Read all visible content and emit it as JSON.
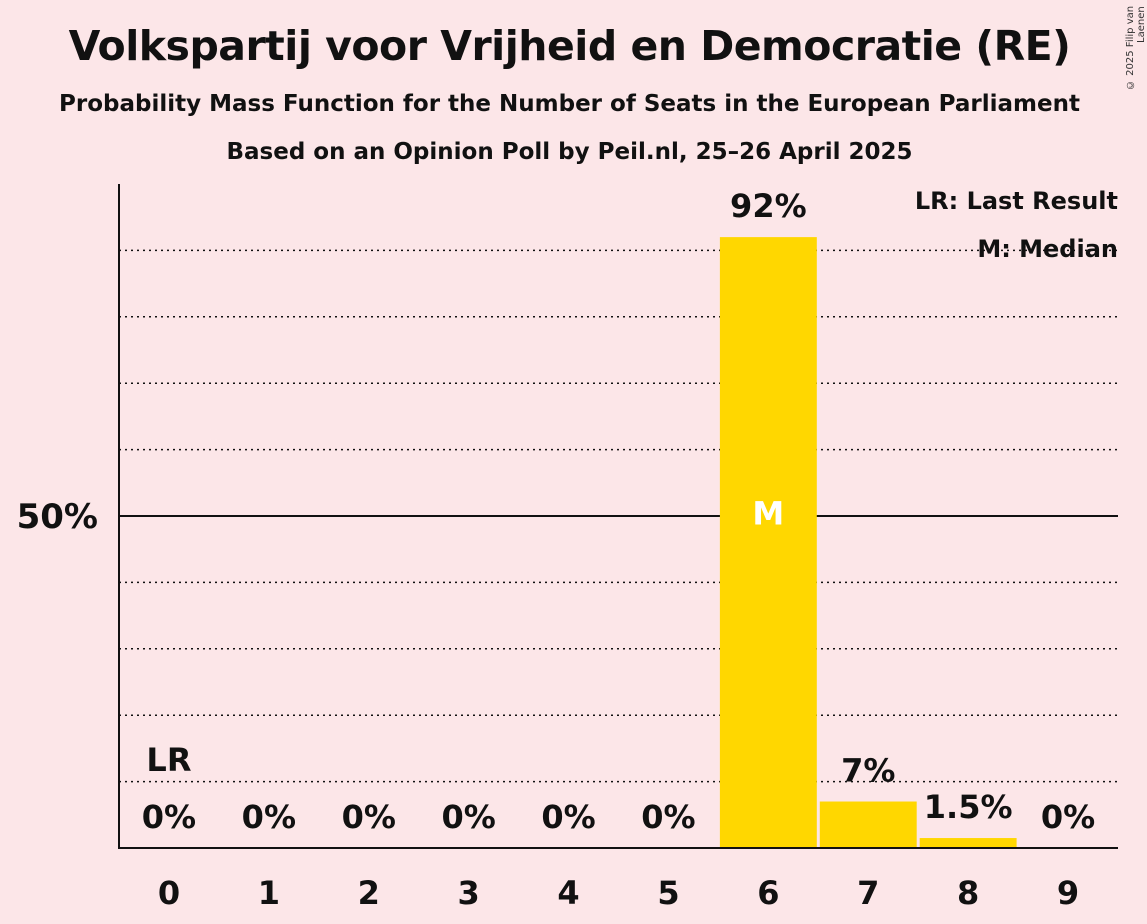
{
  "header": {
    "title": "Volkspartij voor Vrijheid en Democratie (RE)",
    "subtitle": "Probability Mass Function for the Number of Seats in the European Parliament",
    "source": "Based on an Opinion Poll by Peil.nl, 25–26 April 2025",
    "copyright": "© 2025 Filip van Laenen"
  },
  "legend": {
    "last_result": "LR: Last Result",
    "median": "M: Median"
  },
  "colors": {
    "background": "#FCE6E8",
    "bar": "#FFD700",
    "axis": "#111111"
  },
  "chart_data": {
    "type": "bar",
    "categories": [
      "0",
      "1",
      "2",
      "3",
      "4",
      "5",
      "6",
      "7",
      "8",
      "9"
    ],
    "values": [
      0,
      0,
      0,
      0,
      0,
      0,
      92,
      7,
      1.5,
      0
    ],
    "labels": [
      "0%",
      "0%",
      "0%",
      "0%",
      "0%",
      "0%",
      "92%",
      "7%",
      "1.5%",
      "0%"
    ],
    "ylim": [
      0,
      100
    ],
    "y_ticks": [
      {
        "value": 50,
        "label": "50%"
      }
    ],
    "gridlines_dotted": [
      10,
      20,
      30,
      40,
      60,
      70,
      80,
      90
    ],
    "last_result_seat": 0,
    "last_result_marker": "LR",
    "median_seat": 6,
    "median_marker": "M",
    "legend_position": "top-right"
  }
}
